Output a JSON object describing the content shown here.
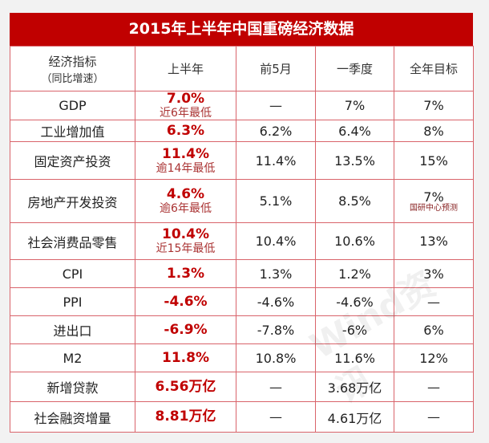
{
  "title": "2015年上半年中国重磅经济数据",
  "headers": {
    "indicator": "经济指标",
    "indicator_sub": "（同比增速）",
    "h1": "上半年",
    "may": "前5月",
    "q1": "一季度",
    "target": "全年目标"
  },
  "rows": [
    {
      "name": "GDP",
      "h1": "7.0%",
      "h1_note": "近6年最低",
      "may": "—",
      "q1": "7%",
      "target": "7%"
    },
    {
      "name": "工业增加值",
      "h1": "6.3%",
      "may": "6.2%",
      "q1": "6.4%",
      "target": "8%"
    },
    {
      "name": "固定资产投资",
      "h1": "11.4%",
      "h1_note": "逾14年最低",
      "may": "11.4%",
      "q1": "13.5%",
      "target": "15%"
    },
    {
      "name": "房地产开发投资",
      "h1": "4.6%",
      "h1_note": "逾6年最低",
      "may": "5.1%",
      "q1": "8.5%",
      "target": "7%",
      "target_note": "国研中心预测"
    },
    {
      "name": "社会消费品零售",
      "h1": "10.4%",
      "h1_note": "近15年最低",
      "may": "10.4%",
      "q1": "10.6%",
      "target": "13%"
    },
    {
      "name": "CPI",
      "h1": "1.3%",
      "may": "1.3%",
      "q1": "1.2%",
      "target": "3%"
    },
    {
      "name": "PPI",
      "h1": "-4.6%",
      "may": "-4.6%",
      "q1": "-4.6%",
      "target": "—"
    },
    {
      "name": "进出口",
      "h1": "-6.9%",
      "may": "-7.8%",
      "q1": "-6%",
      "target": "6%"
    },
    {
      "name": "M2",
      "h1": "11.8%",
      "may": "10.8%",
      "q1": "11.6%",
      "target": "12%"
    },
    {
      "name": "新增贷款",
      "h1": "6.56万亿",
      "may": "—",
      "q1": "3.68万亿",
      "target": "—"
    },
    {
      "name": "社会融资增量",
      "h1": "8.81万亿",
      "may": "—",
      "q1": "4.61万亿",
      "target": "—"
    }
  ],
  "watermark": "Wind资讯",
  "colors": {
    "title_bg": "#c00000",
    "highlight": "#c00000",
    "border": "#d9646b"
  }
}
